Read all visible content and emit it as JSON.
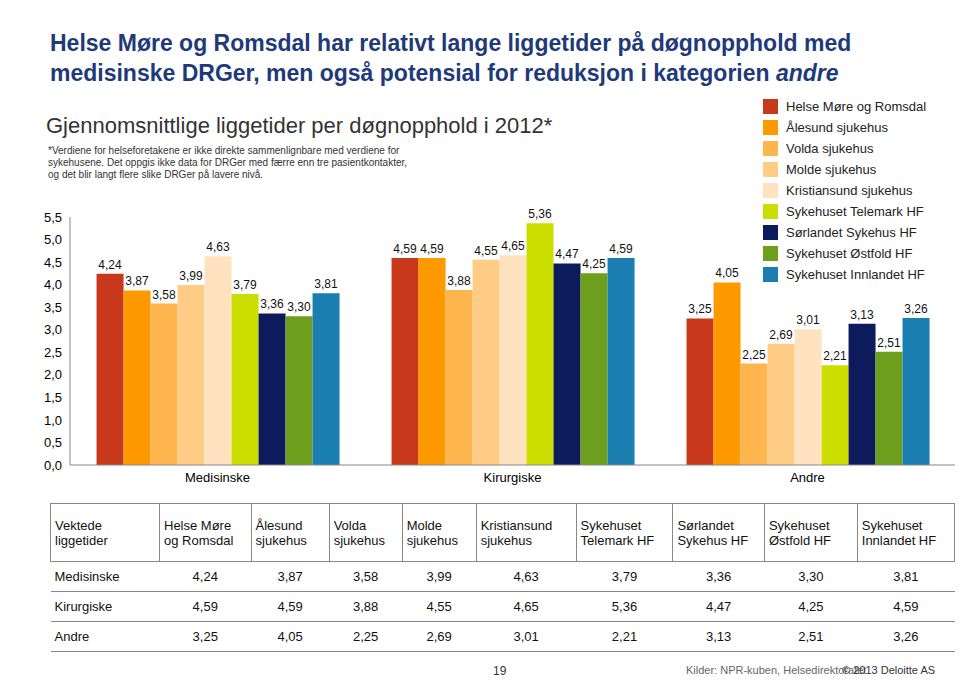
{
  "header": {
    "title": [
      "Helse Møre og Romsdal har relativt lange liggetider på døgnopphold med medisinske DRGer, men også potensial for reduksjon i kategorien",
      "andre"
    ]
  },
  "chart_data": {
    "type": "bar",
    "title": "Gjennomsnittlige liggetider per døgnopphold i 2012*",
    "subtitle": "*Verdiene for helseforetakene er ikke direkte sammenlignbare med verdiene for sykehusene. Det oppgis ikke data for DRGer med færre enn tre pasientkontakter, og det blir langt flere slike DRGer på lavere nivå.",
    "categories": [
      "Medisinske",
      "Kirurgiske",
      "Andre"
    ],
    "series": [
      {
        "name": "Helse Møre og Romsdal",
        "color": "#c8381b",
        "values": [
          4.24,
          4.59,
          3.25
        ],
        "value_labels": [
          "4,24",
          "4,59",
          "3,25"
        ]
      },
      {
        "name": "Ålesund sjukehus",
        "color": "#ff9900",
        "values": [
          3.87,
          4.59,
          4.05
        ],
        "value_labels": [
          "3,87",
          "4,59",
          "4,05"
        ]
      },
      {
        "name": "Volda sjukehus",
        "color": "#ffb54d",
        "values": [
          3.58,
          3.88,
          2.25
        ],
        "value_labels": [
          "3,58",
          "3,88",
          "2,25"
        ]
      },
      {
        "name": "Molde sjukehus",
        "color": "#ffcc85",
        "values": [
          3.99,
          4.55,
          2.69
        ],
        "value_labels": [
          "3,99",
          "4,55",
          "2,69"
        ]
      },
      {
        "name": "Kristiansund sjukehus",
        "color": "#ffe2bf",
        "values": [
          4.63,
          4.65,
          3.01
        ],
        "value_labels": [
          "4,63",
          "4,65",
          "3,01"
        ]
      },
      {
        "name": "Sykehuset Telemark HF",
        "color": "#ccdd00",
        "values": [
          3.79,
          5.36,
          2.21
        ],
        "value_labels": [
          "3,79",
          "5,36",
          "2,21"
        ]
      },
      {
        "name": "Sørlandet Sykehus HF",
        "color": "#0d1a5c",
        "values": [
          3.36,
          4.47,
          3.13
        ],
        "value_labels": [
          "3,36",
          "4,47",
          "3,13"
        ]
      },
      {
        "name": "Sykehuset Østfold HF",
        "color": "#6e9e1e",
        "values": [
          3.3,
          4.25,
          2.51
        ],
        "value_labels": [
          "3,30",
          "4,25",
          "2,51"
        ]
      },
      {
        "name": "Sykehuset Innlandet HF",
        "color": "#1a7fb0",
        "values": [
          3.81,
          4.59,
          3.26
        ],
        "value_labels": [
          "3,81",
          "4,59",
          "3,26"
        ]
      }
    ],
    "ylim": [
      0,
      5.5
    ],
    "yticks": [
      {
        "value": 0,
        "label": "0,0"
      },
      {
        "value": 0.5,
        "label": "0,5"
      },
      {
        "value": 1,
        "label": "1,0"
      },
      {
        "value": 1.5,
        "label": "1,5"
      },
      {
        "value": 2,
        "label": "2,0"
      },
      {
        "value": 2.5,
        "label": "2,5"
      },
      {
        "value": 3,
        "label": "3,0"
      },
      {
        "value": 3.5,
        "label": "3,5"
      },
      {
        "value": 4,
        "label": "4,0"
      },
      {
        "value": 4.5,
        "label": "4,5"
      },
      {
        "value": 5,
        "label": "5,0"
      },
      {
        "value": 5.5,
        "label": "5,5"
      }
    ],
    "grid": false,
    "legend": "right",
    "data_labels": true
  },
  "table": {
    "corner": "Vektede liggetider"
  },
  "footer": {
    "page": "19",
    "source": "Kilder: NPR-kuben, Helsedirektoratet",
    "copyright": "© 2013 Deloitte AS"
  }
}
